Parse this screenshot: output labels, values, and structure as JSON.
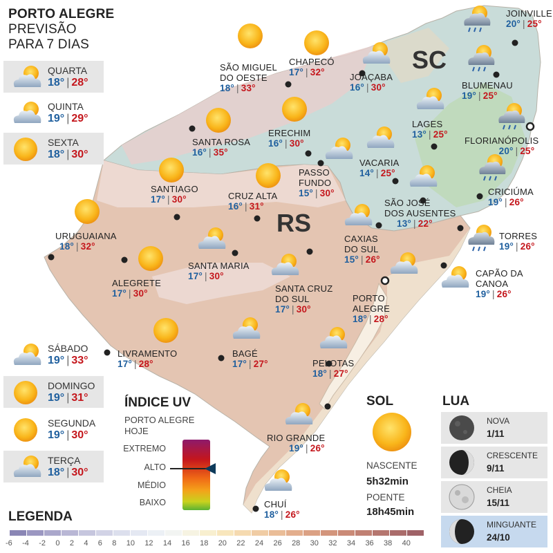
{
  "header": {
    "line1": "PORTO ALEGRE",
    "line2": "PREVISÃO",
    "line3": "PARA 7 DIAS"
  },
  "forecast": [
    {
      "day": "QUARTA",
      "min": "18°",
      "max": "28°",
      "icon": "partly-cloudy-icon"
    },
    {
      "day": "QUINTA",
      "min": "19°",
      "max": "29°",
      "icon": "partly-cloudy-icon"
    },
    {
      "day": "SEXTA",
      "min": "18°",
      "max": "30°",
      "icon": "sun-icon"
    },
    {
      "day": "SÁBADO",
      "min": "19°",
      "max": "33°",
      "icon": "partly-cloudy-icon"
    },
    {
      "day": "DOMINGO",
      "min": "19°",
      "max": "31°",
      "icon": "sun-icon"
    },
    {
      "day": "SEGUNDA",
      "min": "19°",
      "max": "30°",
      "icon": "sun-icon"
    },
    {
      "day": "TERÇA",
      "min": "18°",
      "max": "30°",
      "icon": "partly-cloudy-icon"
    }
  ],
  "states": {
    "sc": "SC",
    "rs": "RS"
  },
  "cities": [
    {
      "name": "JOINVILLE",
      "min": "20°",
      "max": "25°",
      "icon": "storm-rain-icon"
    },
    {
      "name": "CHAPECÓ",
      "min": "17°",
      "max": "32°",
      "icon": "sun-icon"
    },
    {
      "name": "SÃO MIGUEL",
      "name2": "DO OESTE",
      "min": "18°",
      "max": "33°",
      "icon": "sun-icon"
    },
    {
      "name": "JOAÇABA",
      "min": "16°",
      "max": "30°",
      "icon": "partly-cloudy-icon"
    },
    {
      "name": "BLUMENAU",
      "min": "19°",
      "max": "25°",
      "icon": "storm-rain-icon"
    },
    {
      "name": "LAGES",
      "min": "13°",
      "max": "25°",
      "icon": "partly-cloudy-icon"
    },
    {
      "name": "FLORIANÓPOLIS",
      "min": "20°",
      "max": "25°",
      "icon": "storm-rain-icon"
    },
    {
      "name": "ERECHIM",
      "min": "16°",
      "max": "30°",
      "icon": "sun-icon"
    },
    {
      "name": "SANTA ROSA",
      "min": "16°",
      "max": "35°",
      "icon": "sun-icon"
    },
    {
      "name": "VACARIA",
      "min": "14°",
      "max": "25°",
      "icon": "partly-cloudy-icon"
    },
    {
      "name": "PASSO",
      "name2": "FUNDO",
      "min": "15°",
      "max": "30°",
      "icon": "partly-cloudy-icon"
    },
    {
      "name": "SANTIAGO",
      "min": "17°",
      "max": "30°",
      "icon": "sun-icon"
    },
    {
      "name": "CRUZ ALTA",
      "min": "16°",
      "max": "31°",
      "icon": "sun-icon"
    },
    {
      "name": "CRICIÚMA",
      "min": "19°",
      "max": "26°",
      "icon": "storm-rain-icon"
    },
    {
      "name": "SÃO JOSÉ",
      "name2": "DOS AUSENTES",
      "min": "13°",
      "max": "22°",
      "icon": "partly-cloudy-icon"
    },
    {
      "name": "URUGUAIANA",
      "min": "18°",
      "max": "32°",
      "icon": "sun-icon"
    },
    {
      "name": "TORRES",
      "min": "19°",
      "max": "26°",
      "icon": "storm-rain-icon"
    },
    {
      "name": "CAXIAS",
      "name2": "DO SUL",
      "min": "15°",
      "max": "26°",
      "icon": "partly-cloudy-icon"
    },
    {
      "name": "SANTA MARIA",
      "min": "17°",
      "max": "30°",
      "icon": "partly-cloudy-icon"
    },
    {
      "name": "ALEGRETE",
      "min": "17°",
      "max": "30°",
      "icon": "sun-icon"
    },
    {
      "name": "CAPÃO DA",
      "name2": "CANOA",
      "min": "19°",
      "max": "26°",
      "icon": "partly-cloudy-icon"
    },
    {
      "name": "SANTA CRUZ",
      "name2": "DO SUL",
      "min": "17°",
      "max": "30°",
      "icon": "partly-cloudy-icon"
    },
    {
      "name": "PORTO",
      "name2": "ALEGRE",
      "min": "18°",
      "max": "28°",
      "icon": "partly-cloudy-icon"
    },
    {
      "name": "LIVRAMENTO",
      "min": "17°",
      "max": "28°",
      "icon": "sun-icon"
    },
    {
      "name": "BAGÉ",
      "min": "17°",
      "max": "27°",
      "icon": "partly-cloudy-icon"
    },
    {
      "name": "PELOTAS",
      "min": "18°",
      "max": "27°",
      "icon": "partly-cloudy-icon"
    },
    {
      "name": "RIO GRANDE",
      "min": "19°",
      "max": "26°",
      "icon": "partly-cloudy-icon"
    },
    {
      "name": "CHUÍ",
      "min": "18°",
      "max": "26°",
      "icon": "partly-cloudy-icon"
    }
  ],
  "uv": {
    "title": "ÍNDICE UV",
    "sub1": "PORTO ALEGRE",
    "sub2": "HOJE",
    "levels": [
      "EXTREMO",
      "ALTO",
      "MÉDIO",
      "BAIXO"
    ],
    "current": "ALTO"
  },
  "sol": {
    "title": "SOL",
    "rise_label": "NASCENTE",
    "rise": "5h32min",
    "set_label": "POENTE",
    "set": "18h45min"
  },
  "lua": {
    "title": "LUA",
    "phases": [
      {
        "name": "NOVA",
        "date": "1/11",
        "icon": "new-moon-icon"
      },
      {
        "name": "CRESCENTE",
        "date": "9/11",
        "icon": "first-quarter-moon-icon"
      },
      {
        "name": "CHEIA",
        "date": "15/11",
        "icon": "full-moon-icon"
      },
      {
        "name": "MINGUANTE",
        "date": "24/10",
        "icon": "last-quarter-moon-icon",
        "active": true
      }
    ]
  },
  "legend": {
    "title": "LEGENDA",
    "values": [
      "-6",
      "-4",
      "-2",
      "0",
      "2",
      "4",
      "6",
      "8",
      "10",
      "12",
      "14",
      "16",
      "18",
      "20",
      "22",
      "24",
      "26",
      "28",
      "30",
      "32",
      "34",
      "36",
      "38",
      "40"
    ],
    "colors": [
      "#8a86b5",
      "#9b97c1",
      "#aaa7cb",
      "#b9b7d5",
      "#c6c6de",
      "#d2d3e6",
      "#dcdfed",
      "#e4e8f2",
      "#ecf0f5",
      "#f2f4f2",
      "#f6f3e2",
      "#f8efcf",
      "#f8e6bc",
      "#f5dab0",
      "#f0cca4",
      "#eabd98",
      "#e3ae8d",
      "#dba184",
      "#d3957c",
      "#ca8a77",
      "#c08073",
      "#b5766f",
      "#aa6c6b",
      "#9f6267"
    ]
  }
}
